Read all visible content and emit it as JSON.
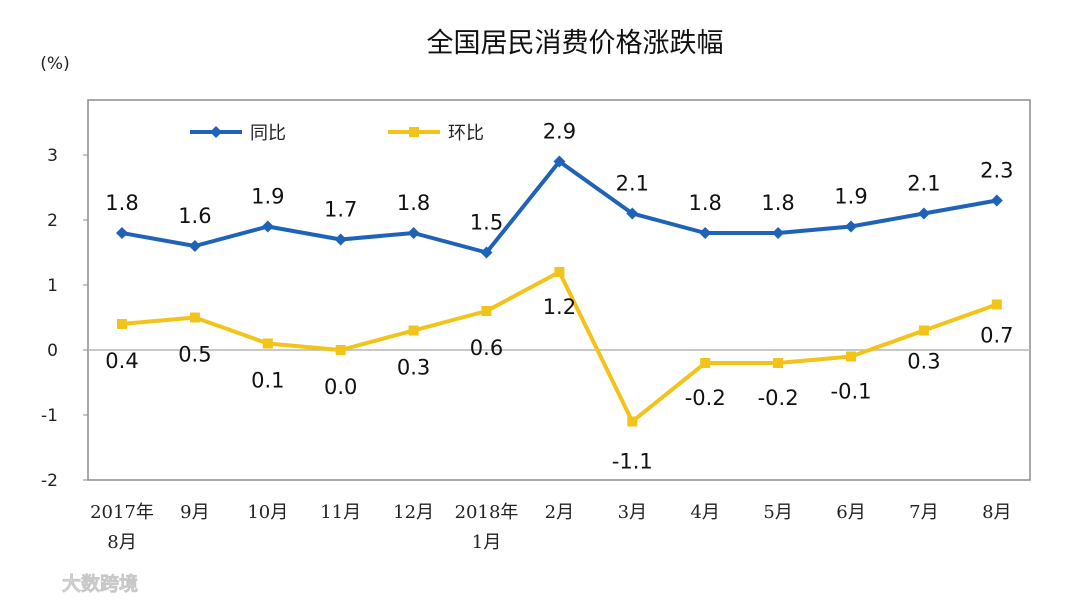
{
  "chart_data": {
    "type": "line",
    "title": "全国居民消费价格涨跌幅",
    "ylabel": "(%)",
    "xlabel": "",
    "ylim": [
      -2,
      3
    ],
    "yticks": [
      "3",
      "2",
      "1",
      "0",
      "-1",
      "-2"
    ],
    "categories": [
      {
        "line1": "2017年",
        "line2": "8月"
      },
      {
        "line1": "9月",
        "line2": ""
      },
      {
        "line1": "10月",
        "line2": ""
      },
      {
        "line1": "11月",
        "line2": ""
      },
      {
        "line1": "12月",
        "line2": ""
      },
      {
        "line1": "2018年",
        "line2": "1月"
      },
      {
        "line1": "2月",
        "line2": ""
      },
      {
        "line1": "3月",
        "line2": ""
      },
      {
        "line1": "4月",
        "line2": ""
      },
      {
        "line1": "5月",
        "line2": ""
      },
      {
        "line1": "6月",
        "line2": ""
      },
      {
        "line1": "7月",
        "line2": ""
      },
      {
        "line1": "8月",
        "line2": ""
      }
    ],
    "series": [
      {
        "name": "同比",
        "color": "#1f63b8",
        "marker": "diamond",
        "values": [
          1.8,
          1.6,
          1.9,
          1.7,
          1.8,
          1.5,
          2.9,
          2.1,
          1.8,
          1.8,
          1.9,
          2.1,
          2.3
        ],
        "labels": [
          "1.8",
          "1.6",
          "1.9",
          "1.7",
          "1.8",
          "1.5",
          "2.9",
          "2.1",
          "1.8",
          "1.8",
          "1.9",
          "2.1",
          "2.3"
        ]
      },
      {
        "name": "环比",
        "color": "#f2c318",
        "marker": "square",
        "values": [
          0.4,
          0.5,
          0.1,
          0.0,
          0.3,
          0.6,
          1.2,
          -1.1,
          -0.2,
          -0.2,
          -0.1,
          0.3,
          0.7
        ],
        "labels": [
          "0.4",
          "0.5",
          "0.1",
          "0.0",
          "0.3",
          "0.6",
          "1.2",
          "-1.1",
          "-0.2",
          "-0.2",
          "-0.1",
          "0.3",
          "0.7"
        ]
      }
    ],
    "legend_position": "top-left",
    "grid": false
  },
  "watermark": {
    "text": "大数跨境"
  }
}
